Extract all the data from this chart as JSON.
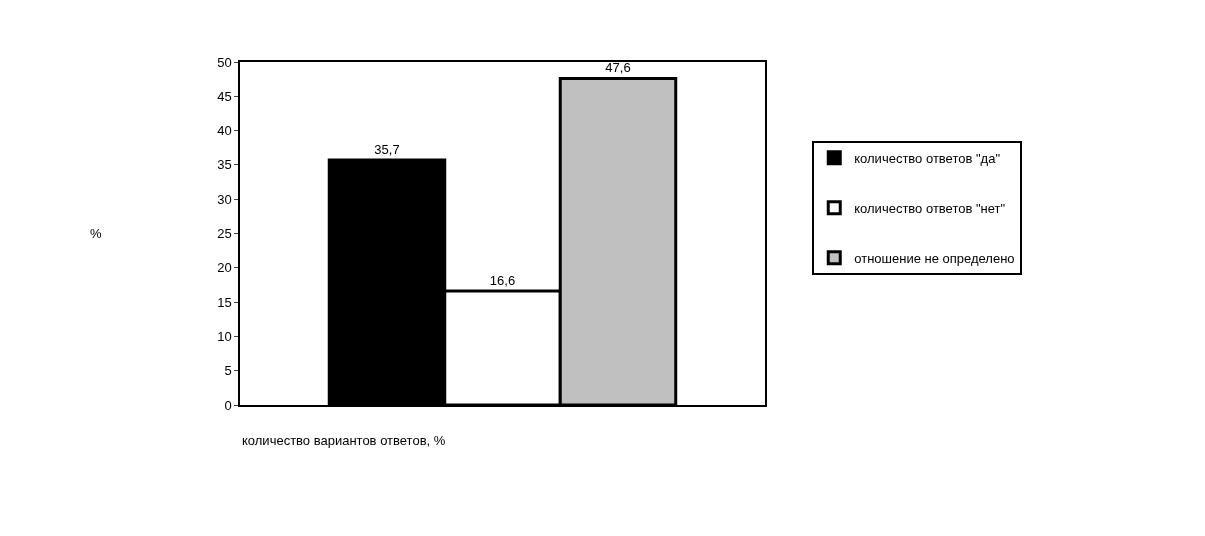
{
  "chart_data": {
    "type": "bar",
    "xlabel": "количество вариантов ответов, %",
    "annotations": [
      "%"
    ],
    "categories": [
      null
    ],
    "series": [
      {
        "name": "количество ответов \"да\"",
        "color": "#000000",
        "values": [
          35.7
        ],
        "value_labels": [
          "35,7"
        ]
      },
      {
        "name": "количество ответов \"нет\"",
        "color": "#ffffff",
        "values": [
          16.6
        ],
        "value_labels": [
          "16,6"
        ]
      },
      {
        "name": "отношение не определено",
        "color": "#c0c0c0",
        "values": [
          47.6
        ],
        "value_labels": [
          "47,6"
        ]
      }
    ],
    "ylim": [
      0,
      50
    ],
    "yticks": [
      0,
      5,
      10,
      15,
      20,
      25,
      30,
      35,
      40,
      45,
      50
    ],
    "grid": false,
    "legend": "right"
  }
}
